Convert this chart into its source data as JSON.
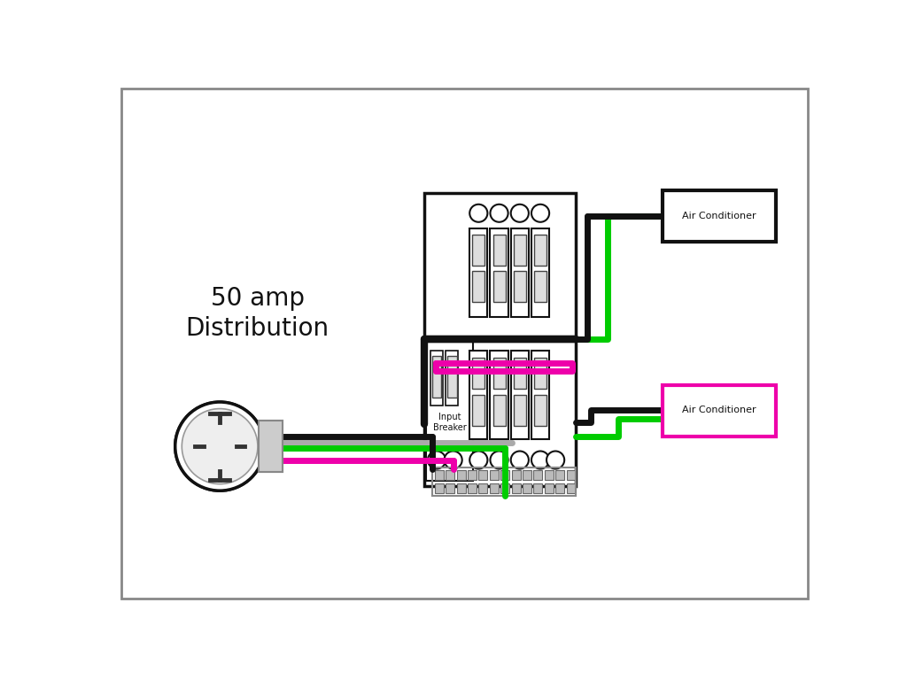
{
  "bg_color": "#ffffff",
  "border_color": "#888888",
  "title": "50 amp\nDistribution",
  "title_fontsize": 20,
  "wire_black": "#111111",
  "wire_green": "#00cc00",
  "wire_pink": "#ee00aa",
  "wire_gray": "#aaaaaa",
  "ac_box1_color": "#111111",
  "ac_box2_color": "#ee00aa",
  "ac_label": "Air Conditioner"
}
